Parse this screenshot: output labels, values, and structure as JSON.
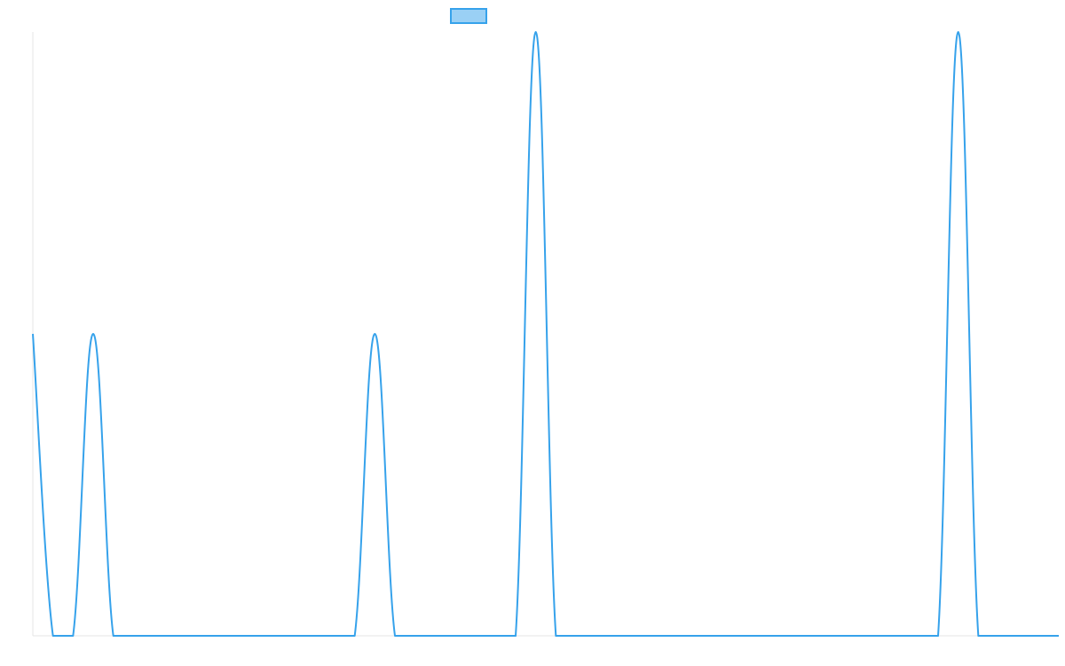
{
  "colors": {
    "series_line": "#36a2eb",
    "legend_fill": "#9ad0f5",
    "axis": "#e6e6e6"
  },
  "legend": {
    "entries": [
      {
        "label": "",
        "color": "#36a2eb"
      }
    ],
    "placement": "top-center"
  },
  "chart_data": {
    "type": "line",
    "title": "",
    "xlabel": "",
    "ylabel": "",
    "grid": false,
    "tick_labels_visible": false,
    "legend_placement": "top-center",
    "x": [
      0,
      1,
      2,
      3,
      4,
      5,
      6,
      7,
      8,
      9,
      10,
      11,
      12,
      13,
      14,
      15,
      16,
      17,
      18,
      19,
      20,
      21,
      22,
      23,
      24,
      25,
      26,
      27,
      28,
      29,
      30,
      31,
      32,
      33,
      34,
      35,
      36,
      37,
      38,
      39,
      40,
      41,
      42,
      43,
      44,
      45,
      46,
      47,
      48,
      49,
      50,
      51
    ],
    "ylim": [
      0,
      2
    ],
    "series": [
      {
        "values": [
          1,
          0,
          0,
          1,
          0,
          0,
          0,
          0,
          0,
          0,
          0,
          0,
          0,
          0,
          0,
          0,
          0,
          1,
          0,
          0,
          0,
          0,
          0,
          0,
          0,
          2,
          0,
          0,
          0,
          0,
          0,
          0,
          0,
          0,
          0,
          0,
          0,
          0,
          0,
          0,
          0,
          0,
          0,
          0,
          0,
          0,
          2,
          0,
          0,
          0,
          0,
          0
        ]
      }
    ]
  }
}
